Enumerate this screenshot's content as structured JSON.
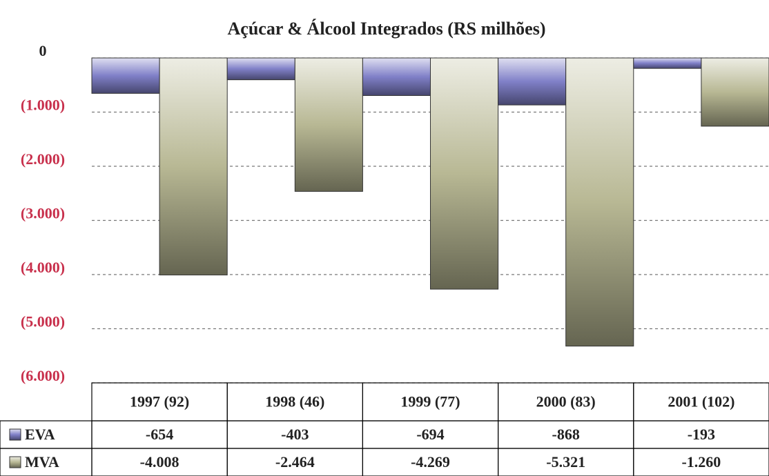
{
  "chart_data": {
    "type": "bar",
    "title": "Açúcar & Álcool Integrados (RS milhões)",
    "categories": [
      "1997 (92)",
      "1998 (46)",
      "1999 (77)",
      "2000 (83)",
      "2001 (102)"
    ],
    "series": [
      {
        "name": "EVA",
        "color": "#8080c8",
        "values": [
          -654,
          -403,
          -694,
          -868,
          -193
        ],
        "value_labels": [
          "-654",
          "-403",
          "-694",
          "-868",
          "-193"
        ]
      },
      {
        "name": "MVA",
        "color": "#b8b894",
        "values": [
          -4008,
          -2464,
          -4269,
          -5321,
          -1260
        ],
        "value_labels": [
          "-4.008",
          "-2.464",
          "-4.269",
          "-5.321",
          "-1.260"
        ]
      }
    ],
    "ylim": [
      -6000,
      0
    ],
    "yticks": [
      0,
      {
        "value": -1000,
        "label": "(1.000)"
      },
      {
        "value": -2000,
        "label": "(2.000)"
      },
      {
        "value": -3000,
        "label": "(3.000)"
      },
      {
        "value": -4000,
        "label": "(4.000)"
      },
      {
        "value": -5000,
        "label": "(5.000)"
      },
      {
        "value": -6000,
        "label": "(6.000)"
      }
    ],
    "grid": true
  }
}
